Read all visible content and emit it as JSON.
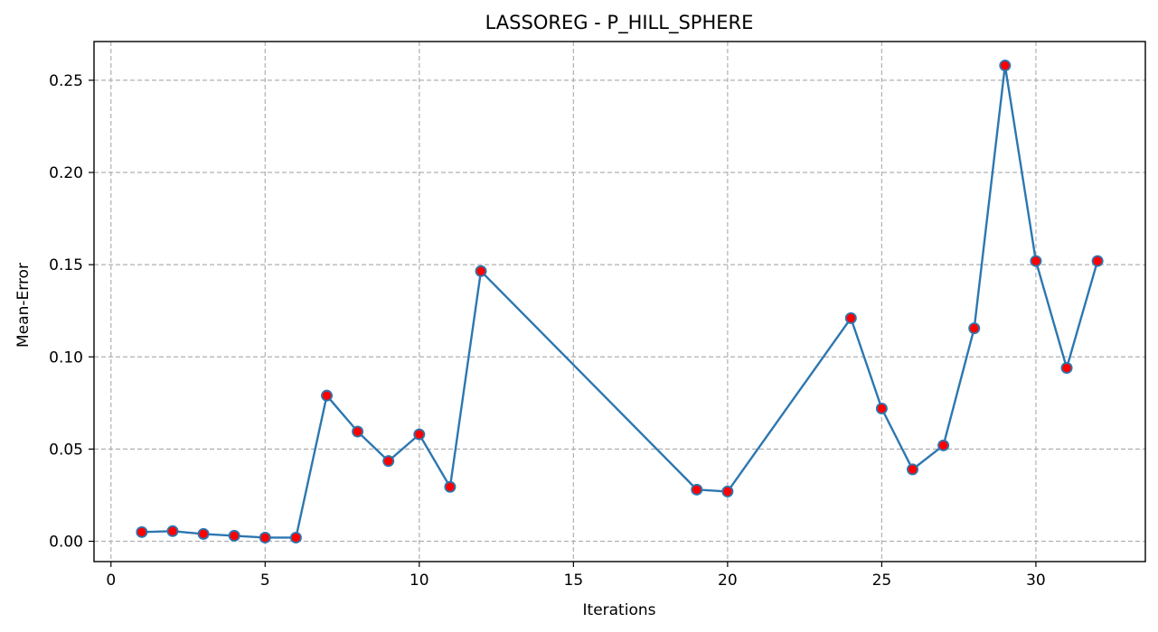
{
  "chart_data": {
    "type": "line",
    "title": "LASSOREG - P_HILL_SPHERE",
    "xlabel": "Iterations",
    "ylabel": "Mean-Error",
    "xlim": [
      -0.55,
      33.55
    ],
    "ylim": [
      -0.011,
      0.271
    ],
    "xticks": [
      0,
      5,
      10,
      15,
      20,
      25,
      30
    ],
    "yticks": [
      0.0,
      0.05,
      0.1,
      0.15,
      0.2,
      0.25
    ],
    "ytick_labels": [
      "0.00",
      "0.05",
      "0.10",
      "0.15",
      "0.20",
      "0.25"
    ],
    "grid": true,
    "series": [
      {
        "x": [
          1,
          2,
          3,
          4,
          5,
          6,
          7,
          8,
          9,
          10,
          11,
          12,
          19,
          20,
          24,
          25,
          26,
          27,
          28,
          29,
          30,
          31,
          32
        ],
        "y": [
          0.005,
          0.0055,
          0.004,
          0.003,
          0.002,
          0.002,
          0.079,
          0.0595,
          0.0435,
          0.058,
          0.0295,
          0.1465,
          0.028,
          0.027,
          0.121,
          0.072,
          0.039,
          0.052,
          0.1155,
          0.258,
          0.152,
          0.094,
          0.152
        ],
        "line_color": "#2c77b0",
        "marker_color": "#ff0000"
      }
    ]
  }
}
